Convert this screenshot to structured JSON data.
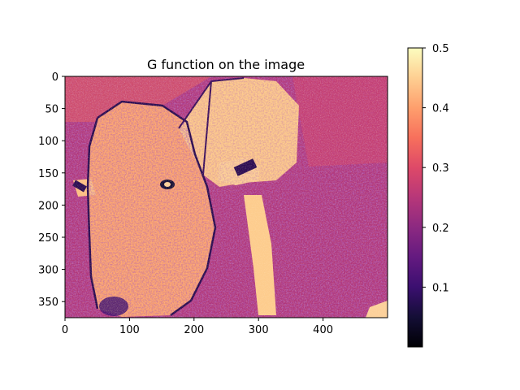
{
  "chart_data": {
    "type": "heatmap",
    "title": "G function on the image",
    "xlabel": "",
    "ylabel": "",
    "image": {
      "width": 500,
      "height": 375,
      "description_hidden": true
    },
    "x_ticks": [
      0,
      100,
      200,
      300,
      400
    ],
    "y_ticks": [
      0,
      50,
      100,
      150,
      200,
      250,
      300,
      350
    ],
    "xlim": [
      0,
      500
    ],
    "ylim": [
      375,
      0
    ],
    "colorbar": {
      "colormap": "magma",
      "min": 0.0,
      "max": 0.5,
      "ticks": [
        0.1,
        0.2,
        0.3,
        0.4,
        0.5
      ],
      "tick_labels": [
        "0.1",
        "0.2",
        "0.3",
        "0.4",
        "0.5"
      ]
    },
    "grid": false
  }
}
